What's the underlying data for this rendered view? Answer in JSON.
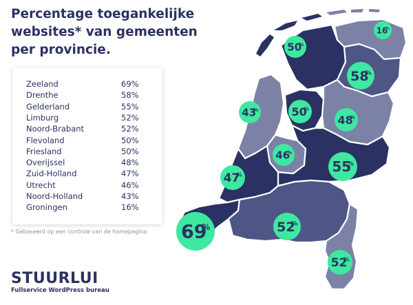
{
  "title": "Percentage toegankelijke websites* van gemeenten per provincie.",
  "table": [
    {
      "name": "Zeeland",
      "pct": "69%"
    },
    {
      "name": "Drenthe",
      "pct": "58%"
    },
    {
      "name": "Gelderland",
      "pct": "55%"
    },
    {
      "name": "Limburg",
      "pct": "52%"
    },
    {
      "name": "Noord-Brabant",
      "pct": "52%"
    },
    {
      "name": "Flevoland",
      "pct": "50%"
    },
    {
      "name": "Friesland",
      "pct": "50%"
    },
    {
      "name": "Overijssel",
      "pct": "48%"
    },
    {
      "name": "Zuid-Holland",
      "pct": "47%"
    },
    {
      "name": "Utrecht",
      "pct": "46%"
    },
    {
      "name": "Noord-Holland",
      "pct": "43%"
    },
    {
      "name": "Groningen",
      "pct": "16%"
    }
  ],
  "footnote": "* Gebaseerd op een controle van de homepagina.",
  "logo": "STUURLUI",
  "logo_subtitle": "Fullservice WordPress bureau",
  "badges": [
    {
      "province": "Friesland",
      "value": "50"
    },
    {
      "province": "Groningen",
      "value": "16"
    },
    {
      "province": "Drenthe",
      "value": "58"
    },
    {
      "province": "Noord-Holland",
      "value": "43"
    },
    {
      "province": "Flevoland",
      "value": "50"
    },
    {
      "province": "Overijssel",
      "value": "48"
    },
    {
      "province": "Utrecht",
      "value": "46"
    },
    {
      "province": "Gelderland",
      "value": "55"
    },
    {
      "province": "Zuid-Holland",
      "value": "47"
    },
    {
      "province": "Zeeland",
      "value": "69"
    },
    {
      "province": "Noord-Brabant",
      "value": "52"
    },
    {
      "province": "Limburg",
      "value": "52"
    }
  ],
  "badge_pct_symbol": "%",
  "colors": {
    "dark": "#2b3162",
    "mid": "#4e5685",
    "light": "#7b82a6",
    "badge": "#3ee8a0",
    "outline": "#ffffff"
  }
}
